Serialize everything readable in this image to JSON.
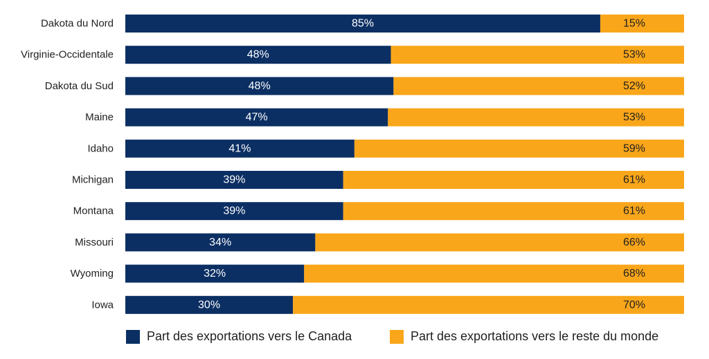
{
  "chart_data": {
    "type": "bar",
    "orientation": "horizontal",
    "stacked": true,
    "categories": [
      "Dakota du Nord",
      "Virginie-Occidentale",
      "Dakota du Sud",
      "Maine",
      "Idaho",
      "Michigan",
      "Montana",
      "Missouri",
      "Wyoming",
      "Iowa"
    ],
    "series": [
      {
        "name": "Part des exportations vers le Canada",
        "values": [
          85,
          48,
          48,
          47,
          41,
          39,
          39,
          34,
          32,
          30
        ],
        "labels": [
          "85%",
          "48%",
          "48%",
          "47%",
          "41%",
          "39%",
          "39%",
          "34%",
          "32%",
          "30%"
        ],
        "color": "#0b2f63"
      },
      {
        "name": "Part des exportations vers le reste du monde",
        "values": [
          15,
          53,
          52,
          53,
          59,
          61,
          61,
          66,
          68,
          70
        ],
        "labels": [
          "15%",
          "53%",
          "52%",
          "53%",
          "59%",
          "61%",
          "61%",
          "66%",
          "68%",
          "70%"
        ],
        "color": "#f9a61a"
      }
    ],
    "xlim": [
      0,
      100
    ],
    "grid": false,
    "legend_position": "bottom"
  }
}
